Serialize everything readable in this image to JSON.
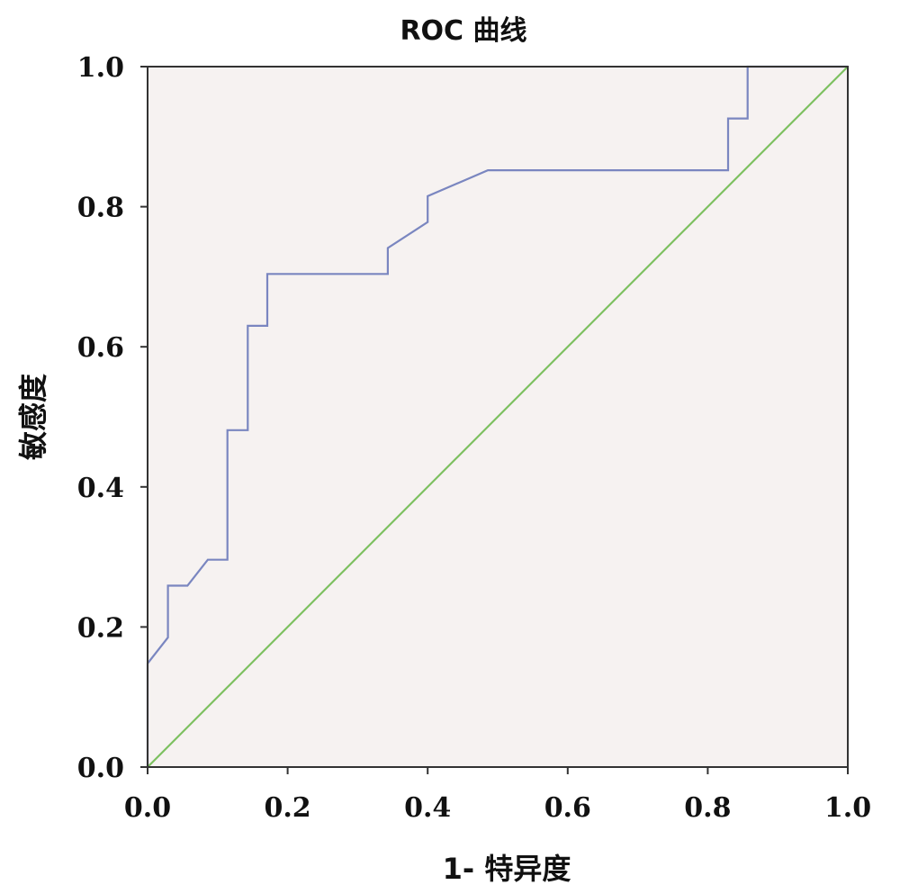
{
  "chart_data": {
    "type": "line",
    "title": "ROC 曲线",
    "xlabel": "1- 特异度",
    "ylabel": "敏感度",
    "xlim": [
      0,
      1
    ],
    "ylim": [
      0,
      1
    ],
    "x_ticks": [
      "0.0",
      "0.2",
      "0.4",
      "0.6",
      "0.8",
      "1.0"
    ],
    "y_ticks": [
      "0.0",
      "0.2",
      "0.4",
      "0.6",
      "0.8",
      "1.0"
    ],
    "grid": false,
    "background_color": "#f6f2f1",
    "series": [
      {
        "color": "#7a86c0",
        "x": [
          0,
          0,
          0.029,
          0.029,
          0.057,
          0.086,
          0.114,
          0.114,
          0.143,
          0.143,
          0.171,
          0.171,
          0.343,
          0.343,
          0.4,
          0.4,
          0.486,
          0.829,
          0.829,
          0.857,
          0.857,
          1.0
        ],
        "y": [
          0,
          0.148,
          0.185,
          0.259,
          0.259,
          0.296,
          0.296,
          0.481,
          0.481,
          0.63,
          0.63,
          0.704,
          0.704,
          0.741,
          0.778,
          0.815,
          0.852,
          0.852,
          0.926,
          0.926,
          1.0,
          1.0
        ]
      },
      {
        "color": "#7dc060",
        "x": [
          0,
          1
        ],
        "y": [
          0,
          1
        ]
      }
    ]
  }
}
